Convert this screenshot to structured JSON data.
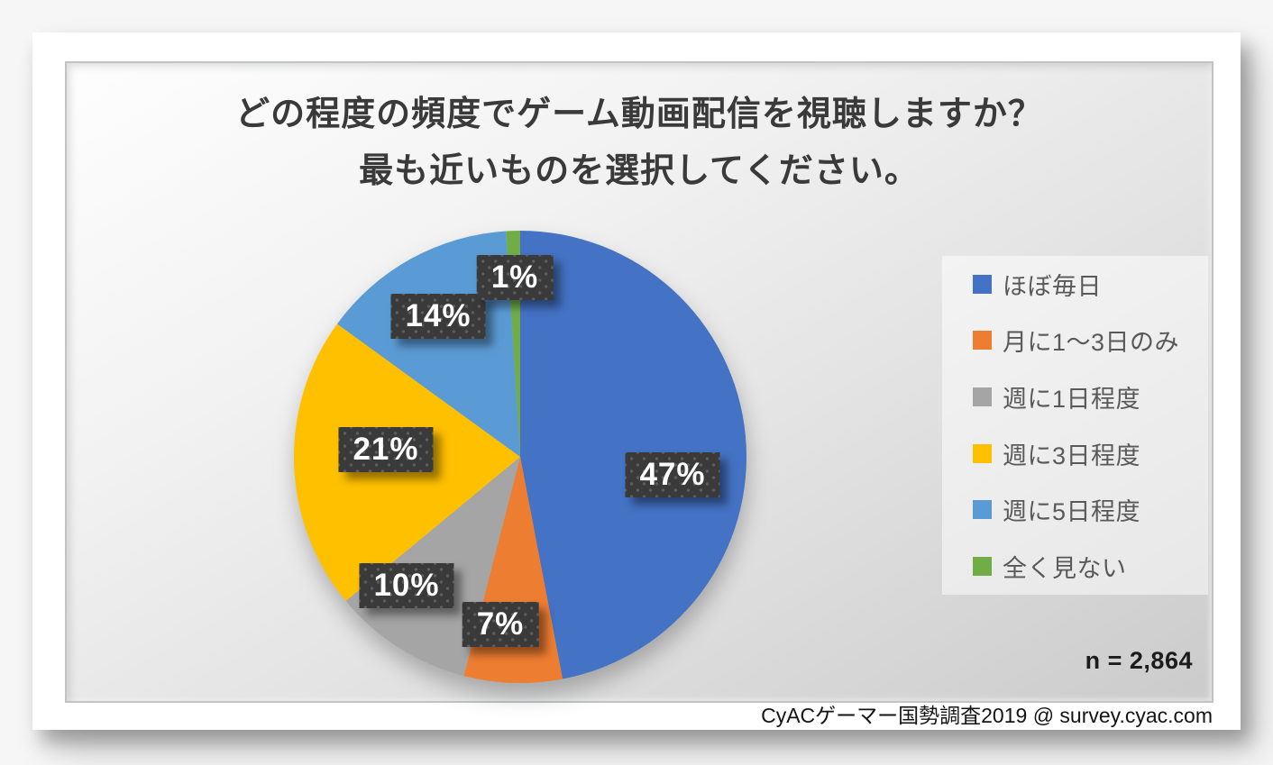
{
  "title": {
    "line1": "どの程度の頻度でゲーム動画配信を視聴しますか？",
    "line2": "最も近いものを選択してください。"
  },
  "chart_data": {
    "type": "pie",
    "title": "どの程度の頻度でゲーム動画配信を視聴しますか？ 最も近いものを選択してください。",
    "categories": [
      "ほぼ毎日",
      "月に1～3日のみ",
      "週に1日程度",
      "週に3日程度",
      "週に5日程度",
      "全く見ない"
    ],
    "values": [
      47,
      7,
      10,
      21,
      14,
      1
    ],
    "unit": "%",
    "data_labels": [
      "47%",
      "7%",
      "10%",
      "21%",
      "14%",
      "1%"
    ],
    "colors": [
      "#4472C4",
      "#ED7D31",
      "#A5A5A5",
      "#FFC000",
      "#5B9BD5",
      "#70AD47"
    ],
    "start_angle_deg": 0,
    "direction": "clockwise",
    "legend_position": "right",
    "label_box_color": "#3A3A3A",
    "label_text_color": "#FFFFFF"
  },
  "sample_size": {
    "label": "n = 2,864"
  },
  "footer": {
    "credit": "CyACゲーマー国勢調査2019 @ survey.cyac.com"
  }
}
